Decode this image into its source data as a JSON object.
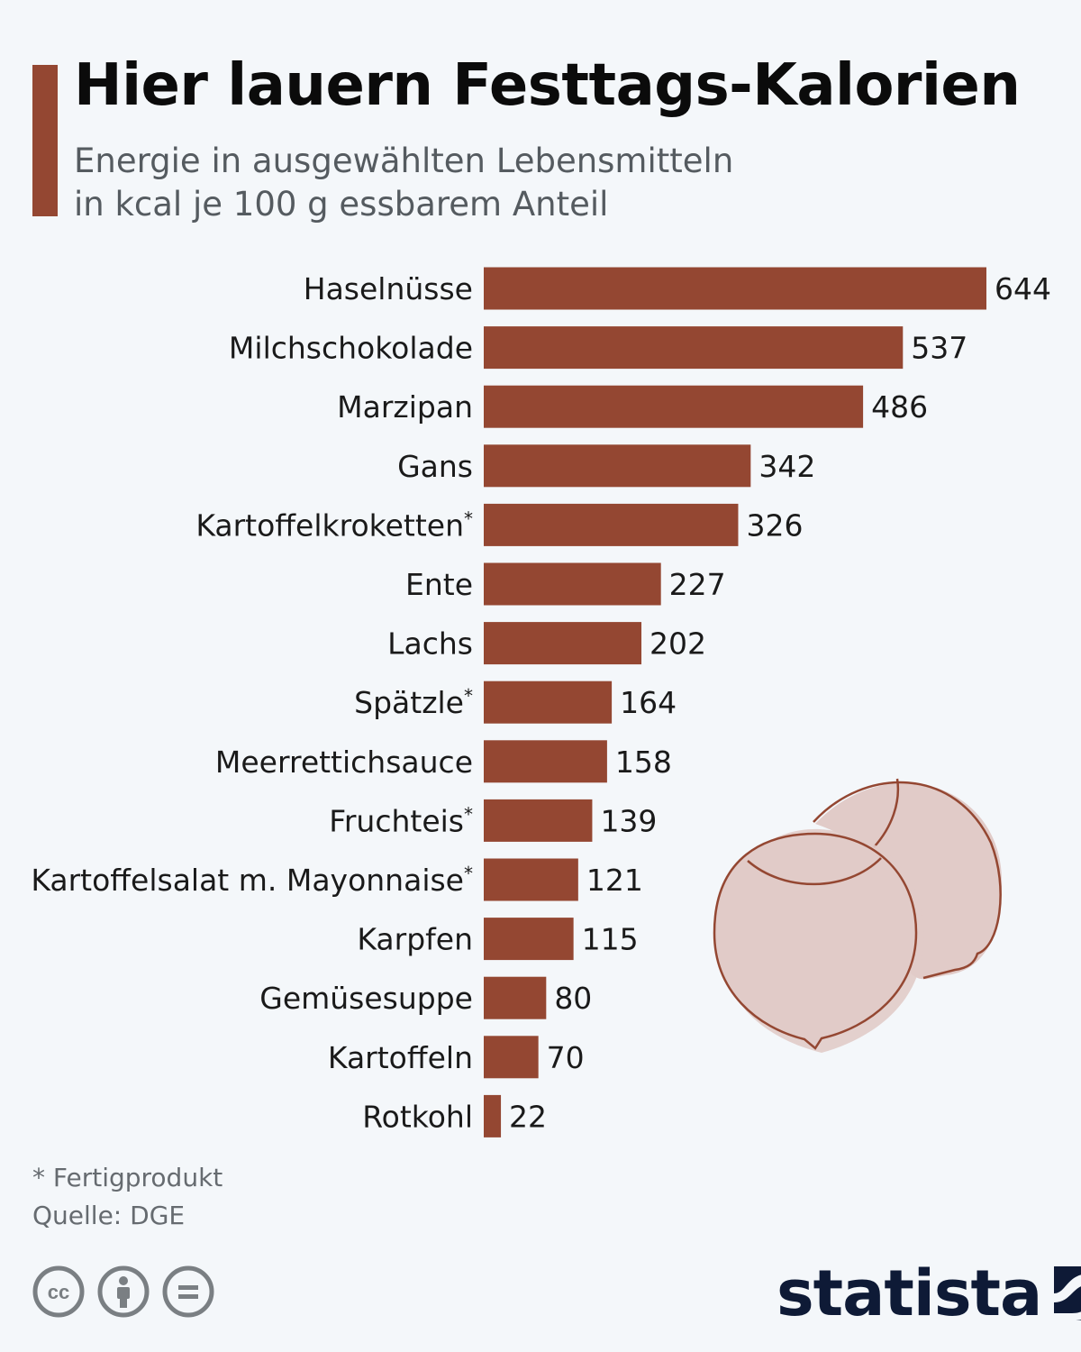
{
  "header": {
    "title": "Hier lauern Festtags-Kalorien",
    "subtitle_line1": "Energie in ausgewählten Lebensmitteln",
    "subtitle_line2": "in kcal je 100 g essbarem Anteil"
  },
  "colors": {
    "accent": "#944732",
    "bar": "#944732",
    "illustration_fill": "#e1cbc8",
    "background": "#f4f7fa",
    "brand": "#0e1a36"
  },
  "chart_data": {
    "type": "bar",
    "orientation": "horizontal",
    "categories": [
      "Haselnüsse",
      "Milchschokolade",
      "Marzipan",
      "Gans",
      "Kartoffelkroketten",
      "Ente",
      "Lachs",
      "Spätzle",
      "Meerrettichsauce",
      "Fruchteis",
      "Kartoffelsalat m. Mayonnaise",
      "Karpfen",
      "Gemüsesuppe",
      "Kartoffeln",
      "Rotkohl"
    ],
    "asterisk": [
      false,
      false,
      false,
      false,
      true,
      false,
      false,
      true,
      false,
      true,
      true,
      false,
      false,
      false,
      false
    ],
    "values": [
      644,
      537,
      486,
      342,
      326,
      227,
      202,
      164,
      158,
      139,
      121,
      115,
      80,
      70,
      22
    ],
    "title": "Hier lauern Festtags-Kalorien",
    "xlabel": "",
    "ylabel": "",
    "xlim": [
      0,
      644
    ],
    "grid": false,
    "legend": "none"
  },
  "illustration": {
    "icon": "hazelnut-icon"
  },
  "footer": {
    "footnote": "* Fertigprodukt",
    "source": "Quelle: DGE",
    "license_icons": [
      "cc-icon",
      "attribution-icon",
      "no-derivatives-icon"
    ],
    "brand": "statista"
  }
}
